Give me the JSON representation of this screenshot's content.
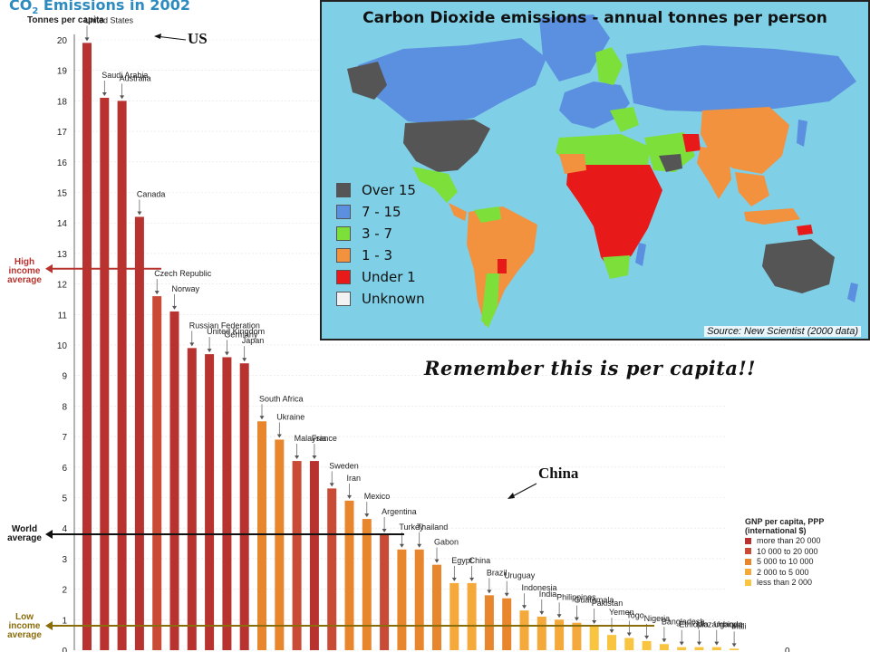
{
  "chart_data": {
    "type": "bar",
    "title_main": "CO",
    "title_sub": "2",
    "title_rest": " Emissions in 2002",
    "ylabel": "Tonnes per capita",
    "ylim": [
      0,
      20
    ],
    "yticks": [
      "0",
      "1",
      "2",
      "3",
      "4",
      "5",
      "6",
      "7",
      "8",
      "9",
      "10",
      "11",
      "12",
      "13",
      "14",
      "15",
      "16",
      "17",
      "18",
      "19",
      "20"
    ],
    "categories": [
      "United States",
      "Saudi Arabia",
      "Australia",
      "Canada",
      "Czech Republic",
      "Norway",
      "Russian Federation",
      "United Kingdom",
      "Germany",
      "Japan",
      "South Africa",
      "Ukraine",
      "Malaysia",
      "France",
      "Sweden",
      "Iran",
      "Mexico",
      "Argentina",
      "Turkey",
      "Thailand",
      "Gabon",
      "Egypt",
      "China",
      "Brazil",
      "Uruguay",
      "Indonesia",
      "India",
      "Philippines",
      "Guatemala",
      "Pakistan",
      "Yemen",
      "Togo",
      "Nigeria",
      "Bangladesh",
      "Ethiopia",
      "Mozambique",
      "Uganda",
      "Mali"
    ],
    "values": [
      19.9,
      18.1,
      18.0,
      14.2,
      11.6,
      11.1,
      9.9,
      9.7,
      9.6,
      9.4,
      7.5,
      6.9,
      6.2,
      6.2,
      5.3,
      4.9,
      4.3,
      3.8,
      3.3,
      3.3,
      2.8,
      2.2,
      2.2,
      1.8,
      1.7,
      1.3,
      1.1,
      1.0,
      0.9,
      0.8,
      0.5,
      0.4,
      0.3,
      0.2,
      0.1,
      0.1,
      0.1,
      0.05
    ],
    "bar_colors": [
      "#b8332f",
      "#b8332f",
      "#b8332f",
      "#b8332f",
      "#c94b36",
      "#b8332f",
      "#b8332f",
      "#b8332f",
      "#b8332f",
      "#b8332f",
      "#e8862d",
      "#e8862d",
      "#c94b36",
      "#b8332f",
      "#c94b36",
      "#e8862d",
      "#e8862d",
      "#c94b36",
      "#e8862d",
      "#e8862d",
      "#e8862d",
      "#f4a93a",
      "#f4a93a",
      "#e8862d",
      "#e8862d",
      "#f4a93a",
      "#f4a93a",
      "#f4a93a",
      "#f4a93a",
      "#f9c440",
      "#f9c440",
      "#f9c440",
      "#f9c440",
      "#f9c440",
      "#f9c440",
      "#f9c440",
      "#f9c440",
      "#f9c440"
    ],
    "reference_lines": [
      {
        "name": "High income average",
        "label_lines": [
          "High",
          "income",
          "average"
        ],
        "value": 12.5,
        "color": "#b8332f"
      },
      {
        "name": "World average",
        "label_lines": [
          "World",
          "average"
        ],
        "value": 3.8,
        "color": "#111111"
      },
      {
        "name": "Low income average",
        "label_lines": [
          "Low",
          "income",
          "average"
        ],
        "value": 0.8,
        "color": "#8a6d0b"
      }
    ],
    "annotations": [
      {
        "text": "US",
        "points_to": "United States"
      },
      {
        "text": "China",
        "points_to": "China"
      }
    ],
    "legend": {
      "title_lines": [
        "GNP per capita, PPP",
        "(international $)"
      ],
      "entries": [
        {
          "label": "more than 20 000",
          "color": "#b8332f"
        },
        {
          "label": "10 000 to 20 000",
          "color": "#c94b36"
        },
        {
          "label": "5 000 to 10 000",
          "color": "#e8862d"
        },
        {
          "label": "2 000 to 5 000",
          "color": "#f4a93a"
        },
        {
          "label": "less than 2 000",
          "color": "#f9c440"
        }
      ]
    }
  },
  "map": {
    "title": "Carbon Dioxide emissions - annual tonnes per person",
    "source": "Source: New Scientist (2000 data)",
    "ocean_color": "#7fcfe6",
    "legend": [
      {
        "label": "Over 15",
        "color": "#555555"
      },
      {
        "label": "7 - 15",
        "color": "#5b8fe0"
      },
      {
        "label": "3 - 7",
        "color": "#7de03a"
      },
      {
        "label": "1 - 3",
        "color": "#f2923f"
      },
      {
        "label": "Under 1",
        "color": "#e81919"
      },
      {
        "label": "Unknown",
        "color": "#f2f2f2"
      }
    ]
  },
  "remember_note": "Remember this is per capita!!",
  "trailing_zero_label": "0"
}
